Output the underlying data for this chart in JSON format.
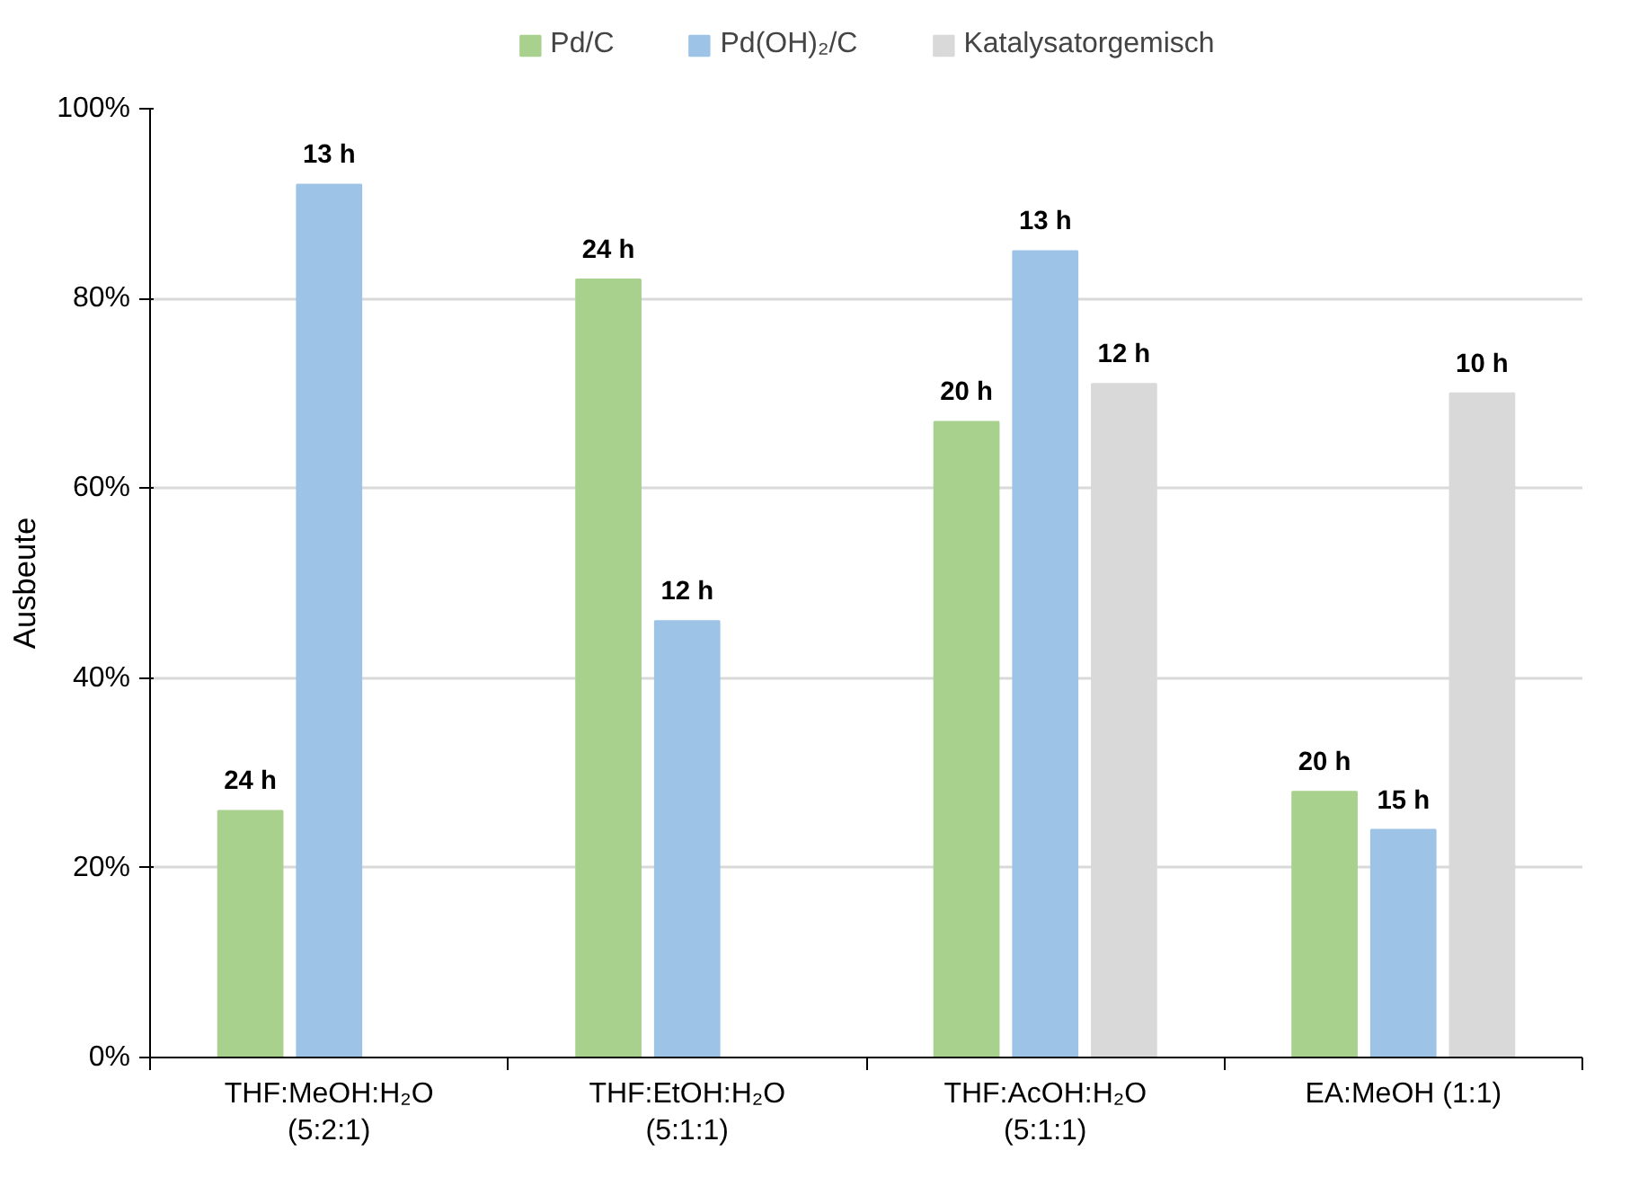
{
  "chart_data": {
    "type": "bar",
    "categories": [
      "THF:MeOH:H₂O\n(5:2:1)",
      "THF:EtOH:H₂O\n(5:1:1)",
      "THF:AcOH:H₂O\n(5:1:1)",
      "EA:MeOH (1:1)"
    ],
    "ylabel": "Ausbeute",
    "series": [
      {
        "name": "Pd/C",
        "color": "#a9d18e",
        "values": [
          26,
          82,
          67,
          28
        ]
      },
      {
        "name": "Pd(OH)₂/C",
        "color": "#9dc3e6",
        "values": [
          92,
          46,
          85,
          24
        ]
      },
      {
        "name": "Katalysatorgemisch",
        "color": "#d9d9d9",
        "values": [
          null,
          null,
          71,
          70
        ]
      }
    ],
    "annotations": [
      "24 h",
      "24 h",
      "20 h",
      "20 h",
      "13 h",
      "12 h",
      "13 h",
      "15 h",
      "12 h",
      "10 h"
    ],
    "ylim": [
      0,
      100
    ],
    "yticks": [
      {
        "value": 0,
        "label": "0%"
      },
      {
        "value": 20,
        "label": "20%"
      },
      {
        "value": 40,
        "label": "40%"
      },
      {
        "value": 60,
        "label": "60%"
      },
      {
        "value": 80,
        "label": "80%"
      },
      {
        "value": 100,
        "label": "100%"
      }
    ],
    "grid": "y",
    "legend": "top"
  }
}
